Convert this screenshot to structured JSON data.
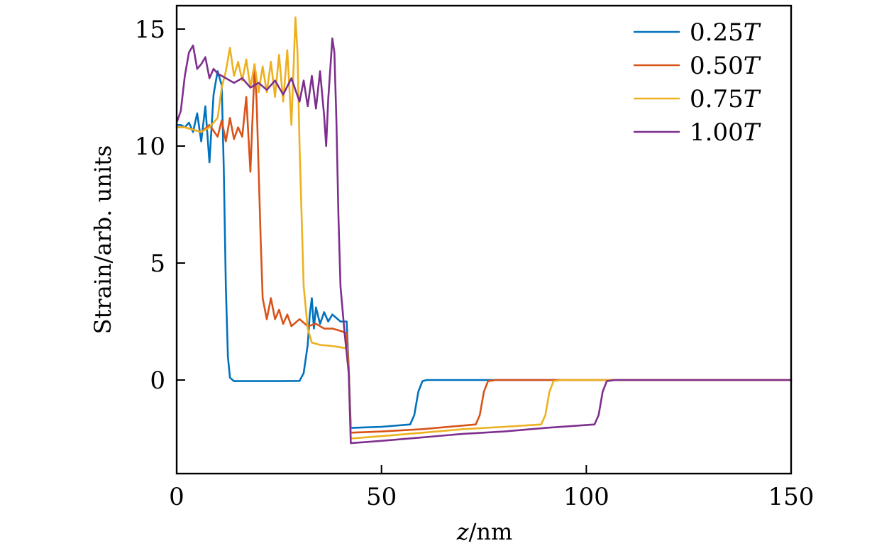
{
  "chart_data": {
    "type": "line",
    "title": "",
    "xlabel_var": "z",
    "xlabel_unit": "/nm",
    "ylabel": "Strain/arb. units",
    "xlim": [
      0,
      150
    ],
    "ylim": [
      -4,
      16
    ],
    "xticks": [
      0,
      50,
      100,
      150
    ],
    "xtick_labels": [
      "0",
      "50",
      "100",
      "150"
    ],
    "yticks": [
      0,
      5,
      10,
      15
    ],
    "ytick_labels": [
      "0",
      "5",
      "10",
      "15"
    ],
    "grid": false,
    "legend_position": "top-right",
    "series": [
      {
        "name": "0.25T",
        "label_num": "0.25",
        "label_var": "T",
        "color": "#0072BD",
        "points": [
          [
            0,
            10.9
          ],
          [
            1,
            10.9
          ],
          [
            2,
            10.8
          ],
          [
            3,
            11
          ],
          [
            4,
            10.6
          ],
          [
            5,
            11.4
          ],
          [
            6,
            10.2
          ],
          [
            7,
            11.7
          ],
          [
            8,
            9.3
          ],
          [
            9,
            12.2
          ],
          [
            10,
            13.2
          ],
          [
            11,
            12.6
          ],
          [
            11.5,
            9
          ],
          [
            12,
            4
          ],
          [
            12.5,
            1
          ],
          [
            13,
            0.1
          ],
          [
            14,
            -0.05
          ],
          [
            20,
            -0.05
          ],
          [
            25,
            -0.05
          ],
          [
            30,
            -0.04
          ],
          [
            31,
            0.3
          ],
          [
            32,
            1.5
          ],
          [
            32.5,
            2.8
          ],
          [
            33,
            3.5
          ],
          [
            33.5,
            2.2
          ],
          [
            34,
            3.1
          ],
          [
            35,
            2.4
          ],
          [
            36,
            2.9
          ],
          [
            37,
            2.5
          ],
          [
            38,
            2.8
          ],
          [
            40,
            2.5
          ],
          [
            41.5,
            2.5
          ],
          [
            42,
            0.5
          ],
          [
            42.5,
            -2.05
          ],
          [
            50,
            -2.0
          ],
          [
            57,
            -1.9
          ],
          [
            58,
            -1.5
          ],
          [
            59,
            -0.5
          ],
          [
            60,
            -0.05
          ],
          [
            61,
            0
          ],
          [
            150,
            0
          ]
        ]
      },
      {
        "name": "0.50T",
        "label_num": "0.50",
        "label_var": "T",
        "color": "#D95319",
        "points": [
          [
            0,
            10.8
          ],
          [
            2,
            10.8
          ],
          [
            4,
            10.7
          ],
          [
            6,
            10.6
          ],
          [
            8,
            10.9
          ],
          [
            10,
            10.4
          ],
          [
            11,
            11.1
          ],
          [
            12,
            10.2
          ],
          [
            13,
            11.2
          ],
          [
            14,
            10.3
          ],
          [
            15,
            10.8
          ],
          [
            16,
            10.4
          ],
          [
            17,
            12.1
          ],
          [
            18,
            8.9
          ],
          [
            19,
            13.3
          ],
          [
            19.5,
            12
          ],
          [
            20,
            9
          ],
          [
            20.5,
            6
          ],
          [
            21,
            3.5
          ],
          [
            22,
            2.6
          ],
          [
            23,
            3.5
          ],
          [
            24,
            2.6
          ],
          [
            25,
            3.0
          ],
          [
            26,
            2.4
          ],
          [
            27,
            2.8
          ],
          [
            28,
            2.3
          ],
          [
            30,
            2.6
          ],
          [
            32,
            2.3
          ],
          [
            34,
            2.4
          ],
          [
            36,
            2.2
          ],
          [
            38,
            2.2
          ],
          [
            40,
            2.1
          ],
          [
            41.5,
            2.0
          ],
          [
            42,
            0.5
          ],
          [
            42.5,
            -2.25
          ],
          [
            50,
            -2.2
          ],
          [
            60,
            -2.1
          ],
          [
            73,
            -1.9
          ],
          [
            74,
            -1.5
          ],
          [
            75,
            -0.5
          ],
          [
            76,
            -0.05
          ],
          [
            78,
            0
          ],
          [
            150,
            0
          ]
        ]
      },
      {
        "name": "0.75T",
        "label_num": "0.75",
        "label_var": "T",
        "color": "#EDB120",
        "points": [
          [
            0,
            10.8
          ],
          [
            2,
            10.8
          ],
          [
            4,
            10.7
          ],
          [
            6,
            10.6
          ],
          [
            8,
            10.8
          ],
          [
            10,
            11.2
          ],
          [
            11,
            12.5
          ],
          [
            12,
            13.2
          ],
          [
            13,
            14.2
          ],
          [
            14,
            13
          ],
          [
            15,
            13.6
          ],
          [
            16,
            12.8
          ],
          [
            17,
            13.7
          ],
          [
            18,
            12.5
          ],
          [
            19,
            13.5
          ],
          [
            20,
            12.3
          ],
          [
            21,
            13.4
          ],
          [
            22,
            12.3
          ],
          [
            23,
            13.6
          ],
          [
            24,
            12.1
          ],
          [
            25,
            13.9
          ],
          [
            26,
            11.9
          ],
          [
            27,
            14.1
          ],
          [
            28,
            10.9
          ],
          [
            29,
            15.5
          ],
          [
            29.5,
            14
          ],
          [
            30,
            10
          ],
          [
            30.5,
            7
          ],
          [
            31,
            4
          ],
          [
            32,
            2.2
          ],
          [
            33,
            1.6
          ],
          [
            35,
            1.5
          ],
          [
            38,
            1.45
          ],
          [
            40,
            1.4
          ],
          [
            41.5,
            1.35
          ],
          [
            42,
            0.3
          ],
          [
            42.5,
            -2.5
          ],
          [
            50,
            -2.4
          ],
          [
            60,
            -2.25
          ],
          [
            70,
            -2.1
          ],
          [
            80,
            -2.0
          ],
          [
            89,
            -1.9
          ],
          [
            90,
            -1.5
          ],
          [
            91,
            -0.5
          ],
          [
            92,
            -0.05
          ],
          [
            94,
            0
          ],
          [
            150,
            0
          ]
        ]
      },
      {
        "name": "1.00T",
        "label_num": "1.00",
        "label_var": "T",
        "color": "#7E2F8E",
        "points": [
          [
            0,
            11
          ],
          [
            1,
            11.5
          ],
          [
            2,
            13
          ],
          [
            3,
            14
          ],
          [
            4,
            14.3
          ],
          [
            5,
            13.3
          ],
          [
            6,
            13.5
          ],
          [
            7,
            13.8
          ],
          [
            8,
            12.9
          ],
          [
            9,
            13.3
          ],
          [
            10,
            13.1
          ],
          [
            12,
            12.9
          ],
          [
            14,
            12.7
          ],
          [
            16,
            12.9
          ],
          [
            18,
            12.5
          ],
          [
            20,
            12.7
          ],
          [
            22,
            12.4
          ],
          [
            24,
            12.8
          ],
          [
            26,
            12.2
          ],
          [
            28,
            12.9
          ],
          [
            30,
            11.9
          ],
          [
            31,
            12.8
          ],
          [
            32,
            11.7
          ],
          [
            33,
            13
          ],
          [
            34,
            11.6
          ],
          [
            35,
            13.2
          ],
          [
            36,
            11.3
          ],
          [
            36.5,
            10
          ],
          [
            37,
            12
          ],
          [
            38,
            14.6
          ],
          [
            38.5,
            14
          ],
          [
            39,
            11
          ],
          [
            39.5,
            7
          ],
          [
            40,
            4
          ],
          [
            41,
            2
          ],
          [
            42,
            0.3
          ],
          [
            42.5,
            -2.7
          ],
          [
            50,
            -2.6
          ],
          [
            60,
            -2.45
          ],
          [
            70,
            -2.3
          ],
          [
            80,
            -2.2
          ],
          [
            90,
            -2.05
          ],
          [
            102,
            -1.9
          ],
          [
            103,
            -1.5
          ],
          [
            104,
            -0.5
          ],
          [
            105,
            -0.05
          ],
          [
            107,
            0
          ],
          [
            150,
            0
          ]
        ]
      }
    ]
  }
}
